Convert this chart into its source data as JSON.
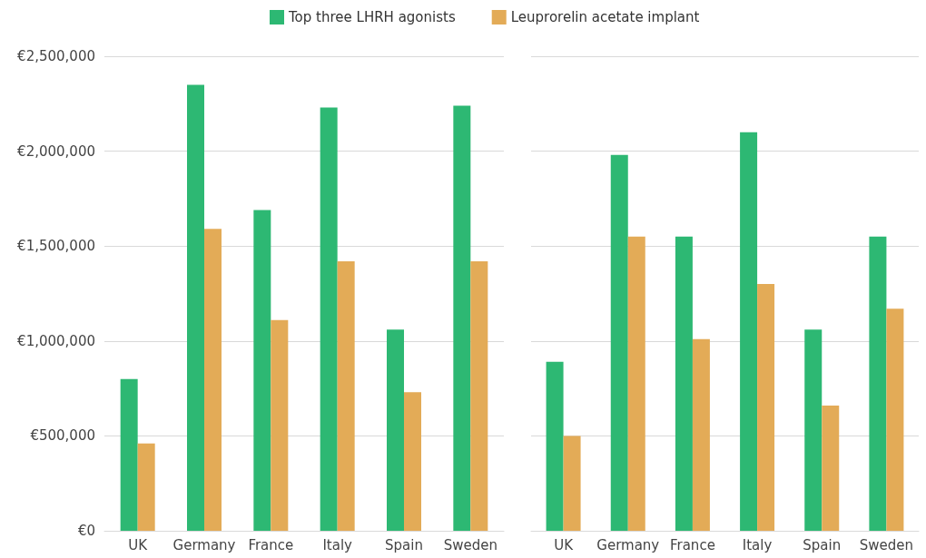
{
  "chart_data": [
    {
      "type": "bar",
      "categories": [
        "UK",
        "Germany",
        "France",
        "Italy",
        "Spain",
        "Sweden"
      ],
      "series": [
        {
          "name": "Top three LHRH agonists",
          "color": "#2db873",
          "values": [
            800000,
            2350000,
            1690000,
            2230000,
            1060000,
            2240000
          ]
        },
        {
          "name": "Leuprorelin acetate implant",
          "color": "#e3ab57",
          "values": [
            460000,
            1590000,
            1110000,
            1420000,
            730000,
            1420000
          ]
        }
      ],
      "ylim": [
        0,
        2500000
      ],
      "yticks": [
        {
          "value": 0,
          "label": "€0"
        },
        {
          "value": 500000,
          "label": "€500,000"
        },
        {
          "value": 1000000,
          "label": "€1,000,000"
        },
        {
          "value": 1500000,
          "label": "€1,500,000"
        },
        {
          "value": 2000000,
          "label": "€2,000,000"
        },
        {
          "value": 2500000,
          "label": "€2,500,000"
        }
      ],
      "grid": "y",
      "legend": "top"
    },
    {
      "type": "bar",
      "categories": [
        "UK",
        "Germany",
        "France",
        "Italy",
        "Spain",
        "Sweden"
      ],
      "series": [
        {
          "color": "#2db873",
          "values": [
            890000,
            1980000,
            1550000,
            2100000,
            1060000,
            1550000
          ]
        },
        {
          "color": "#e3ab57",
          "values": [
            500000,
            1550000,
            1010000,
            1300000,
            660000,
            1170000
          ]
        }
      ],
      "ylim": [
        0,
        2500000
      ],
      "yticks": [
        {
          "value": 0,
          "label": null
        },
        {
          "value": 500000,
          "label": null
        },
        {
          "value": 1000000,
          "label": null
        },
        {
          "value": 1500000,
          "label": null
        },
        {
          "value": 2000000,
          "label": null
        },
        {
          "value": 2500000,
          "label": null
        }
      ],
      "grid": "y",
      "legend": false,
      "tick_labels": "x"
    }
  ]
}
